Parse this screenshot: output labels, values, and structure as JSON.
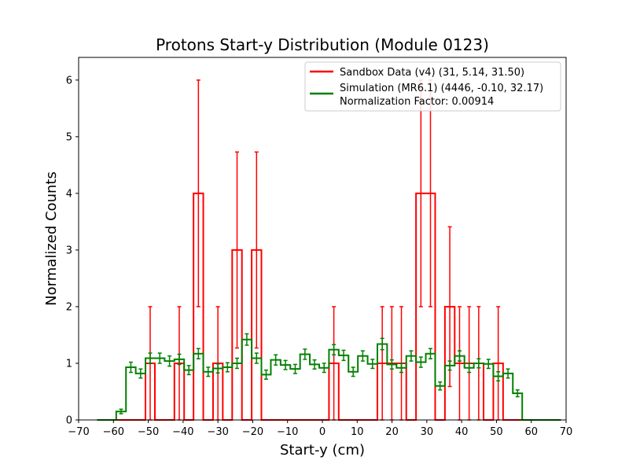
{
  "chart_data": {
    "type": "histogram",
    "title": "Protons Start-y Distribution (Module 0123)",
    "xlabel": "Start-y (cm)",
    "ylabel": "Normalized Counts",
    "xlim": [
      -70,
      70
    ],
    "ylim": [
      0,
      6.4
    ],
    "x_ticks": [
      -70,
      -60,
      -50,
      -40,
      -30,
      -20,
      -10,
      0,
      10,
      20,
      30,
      40,
      50,
      60,
      70
    ],
    "y_ticks": [
      0,
      1,
      2,
      3,
      4,
      5,
      6
    ],
    "grid": false,
    "legend_position": "top-right",
    "bin_edges": [
      -64.7,
      -62.0,
      -59.2,
      -56.4,
      -53.6,
      -50.8,
      -48.1,
      -45.3,
      -42.5,
      -39.7,
      -37.0,
      -34.2,
      -31.4,
      -28.6,
      -25.9,
      -23.1,
      -20.3,
      -17.5,
      -14.8,
      -12.0,
      -9.2,
      -6.4,
      -3.6,
      -0.9,
      1.9,
      4.7,
      7.5,
      10.2,
      13.0,
      15.8,
      18.6,
      21.3,
      24.1,
      26.9,
      29.7,
      32.4,
      35.2,
      38.0,
      40.8,
      43.5,
      46.3,
      49.1,
      51.9,
      54.7,
      57.4,
      60.2,
      63.0,
      65.8,
      68.5
    ],
    "series": [
      {
        "name": "Sandbox Data (v4) (31, 5.14, 31.50)",
        "color": "#ff0000",
        "values": [
          0,
          0,
          0,
          0,
          0,
          1,
          0,
          0,
          1,
          0,
          4,
          0,
          1,
          0,
          3,
          0,
          3,
          0,
          0,
          0,
          0,
          0,
          0,
          0,
          1,
          0,
          0,
          0,
          0,
          1,
          1,
          1,
          0,
          4,
          4,
          0,
          2,
          1,
          1,
          1,
          0,
          1,
          0,
          0,
          0,
          0,
          0,
          0
        ],
        "errors": [
          0,
          0,
          0,
          0,
          0,
          1,
          0,
          0,
          1,
          0,
          2,
          0,
          1,
          0,
          1.73,
          0,
          1.73,
          0,
          0,
          0,
          0,
          0,
          0,
          0,
          1,
          0,
          0,
          0,
          0,
          1,
          1,
          1,
          0,
          2,
          2,
          0,
          1.41,
          1,
          1,
          1,
          0,
          1,
          0,
          0,
          0,
          0,
          0,
          0
        ]
      },
      {
        "name": "Simulation (MR6.1) (4446, -0.10, 32.17)",
        "color": "#008000",
        "values": [
          0,
          0,
          0.15,
          0.93,
          0.82,
          1.09,
          1.09,
          1.04,
          1.07,
          0.88,
          1.17,
          0.85,
          0.91,
          0.93,
          1.0,
          1.42,
          1.09,
          0.8,
          1.06,
          0.97,
          0.9,
          1.16,
          0.98,
          0.92,
          1.24,
          1.14,
          0.85,
          1.13,
          0.99,
          1.34,
          0.98,
          0.92,
          1.13,
          1.02,
          1.17,
          0.6,
          0.96,
          1.13,
          0.92,
          1.0,
          0.99,
          0.77,
          0.82,
          0.47,
          0,
          0,
          0,
          0
        ],
        "errors": [
          0,
          0,
          0.04,
          0.09,
          0.08,
          0.09,
          0.09,
          0.09,
          0.09,
          0.08,
          0.09,
          0.08,
          0.08,
          0.08,
          0.09,
          0.1,
          0.09,
          0.08,
          0.09,
          0.08,
          0.08,
          0.09,
          0.08,
          0.08,
          0.09,
          0.09,
          0.08,
          0.09,
          0.08,
          0.1,
          0.08,
          0.08,
          0.09,
          0.09,
          0.09,
          0.07,
          0.08,
          0.09,
          0.08,
          0.08,
          0.08,
          0.08,
          0.08,
          0.06,
          0,
          0,
          0,
          0
        ]
      }
    ],
    "legend_extra_text": "Normalization Factor: 0.00914"
  }
}
